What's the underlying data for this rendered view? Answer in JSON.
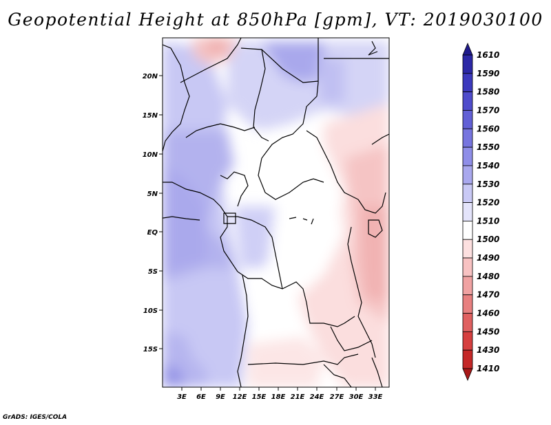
{
  "title": "Geopotential Height at 850hPa [gpm], VT: 2019030100",
  "credit": "GrADS: IGES/COLA",
  "lat_labels": [
    "20N",
    "15N",
    "10N",
    "5N",
    "EQ",
    "5S",
    "10S",
    "15S"
  ],
  "lon_labels": [
    "3E",
    "6E",
    "9E",
    "12E",
    "15E",
    "18E",
    "21E",
    "24E",
    "27E",
    "30E",
    "33E"
  ],
  "legend": {
    "levels": [
      "1610",
      "1590",
      "1580",
      "1570",
      "1560",
      "1550",
      "1540",
      "1530",
      "1520",
      "1510",
      "1500",
      "1490",
      "1480",
      "1470",
      "1460",
      "1450",
      "1430",
      "1410"
    ],
    "colors": [
      "#1f1a8c",
      "#2c28a6",
      "#3c39bd",
      "#4f4ccc",
      "#6260d6",
      "#7775df",
      "#8f8ee8",
      "#a9a8ee",
      "#c9c9f5",
      "#e4e4fb",
      "#ffffff",
      "#fde0e0",
      "#f8c2c2",
      "#f0a2a2",
      "#e88080",
      "#e06060",
      "#d63f3f",
      "#c52828",
      "#a81818"
    ]
  }
}
